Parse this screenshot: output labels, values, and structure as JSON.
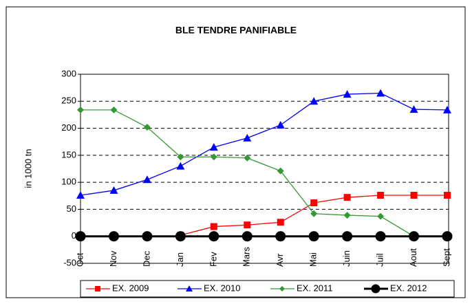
{
  "chart_data": {
    "type": "line",
    "title": "BLE TENDRE PANIFIABLE",
    "y_label": "in 1000 tn",
    "categories": [
      "Oct",
      "Nov",
      "Dec",
      "Jan",
      "Fev",
      "Mars",
      "Avr",
      "Mai",
      "Juin",
      "Juil",
      "Aout",
      "Sept"
    ],
    "series": [
      {
        "name": "EX. 2009",
        "color": "#ff0000",
        "marker": "square",
        "values": [
          null,
          null,
          null,
          2,
          18,
          21,
          26,
          62,
          72,
          76,
          76,
          76
        ]
      },
      {
        "name": "EX. 2010",
        "color": "#0000ff",
        "marker": "triangle",
        "values": [
          76,
          85,
          105,
          130,
          165,
          182,
          206,
          250,
          263,
          265,
          235,
          234
        ]
      },
      {
        "name": "EX. 2011",
        "color": "#339933",
        "marker": "diamond",
        "values": [
          234,
          234,
          202,
          147,
          147,
          145,
          121,
          42,
          39,
          37,
          0,
          null
        ]
      },
      {
        "name": "EX. 2012",
        "color": "#000000",
        "marker": "circle",
        "values": [
          0,
          0,
          0,
          0,
          0,
          0,
          0,
          0,
          0,
          0,
          0,
          0
        ]
      }
    ],
    "ylim": [
      -50,
      300
    ],
    "yticks": [
      -50,
      0,
      50,
      100,
      150,
      200,
      250,
      300
    ],
    "grid": true,
    "legend": "bottom"
  }
}
